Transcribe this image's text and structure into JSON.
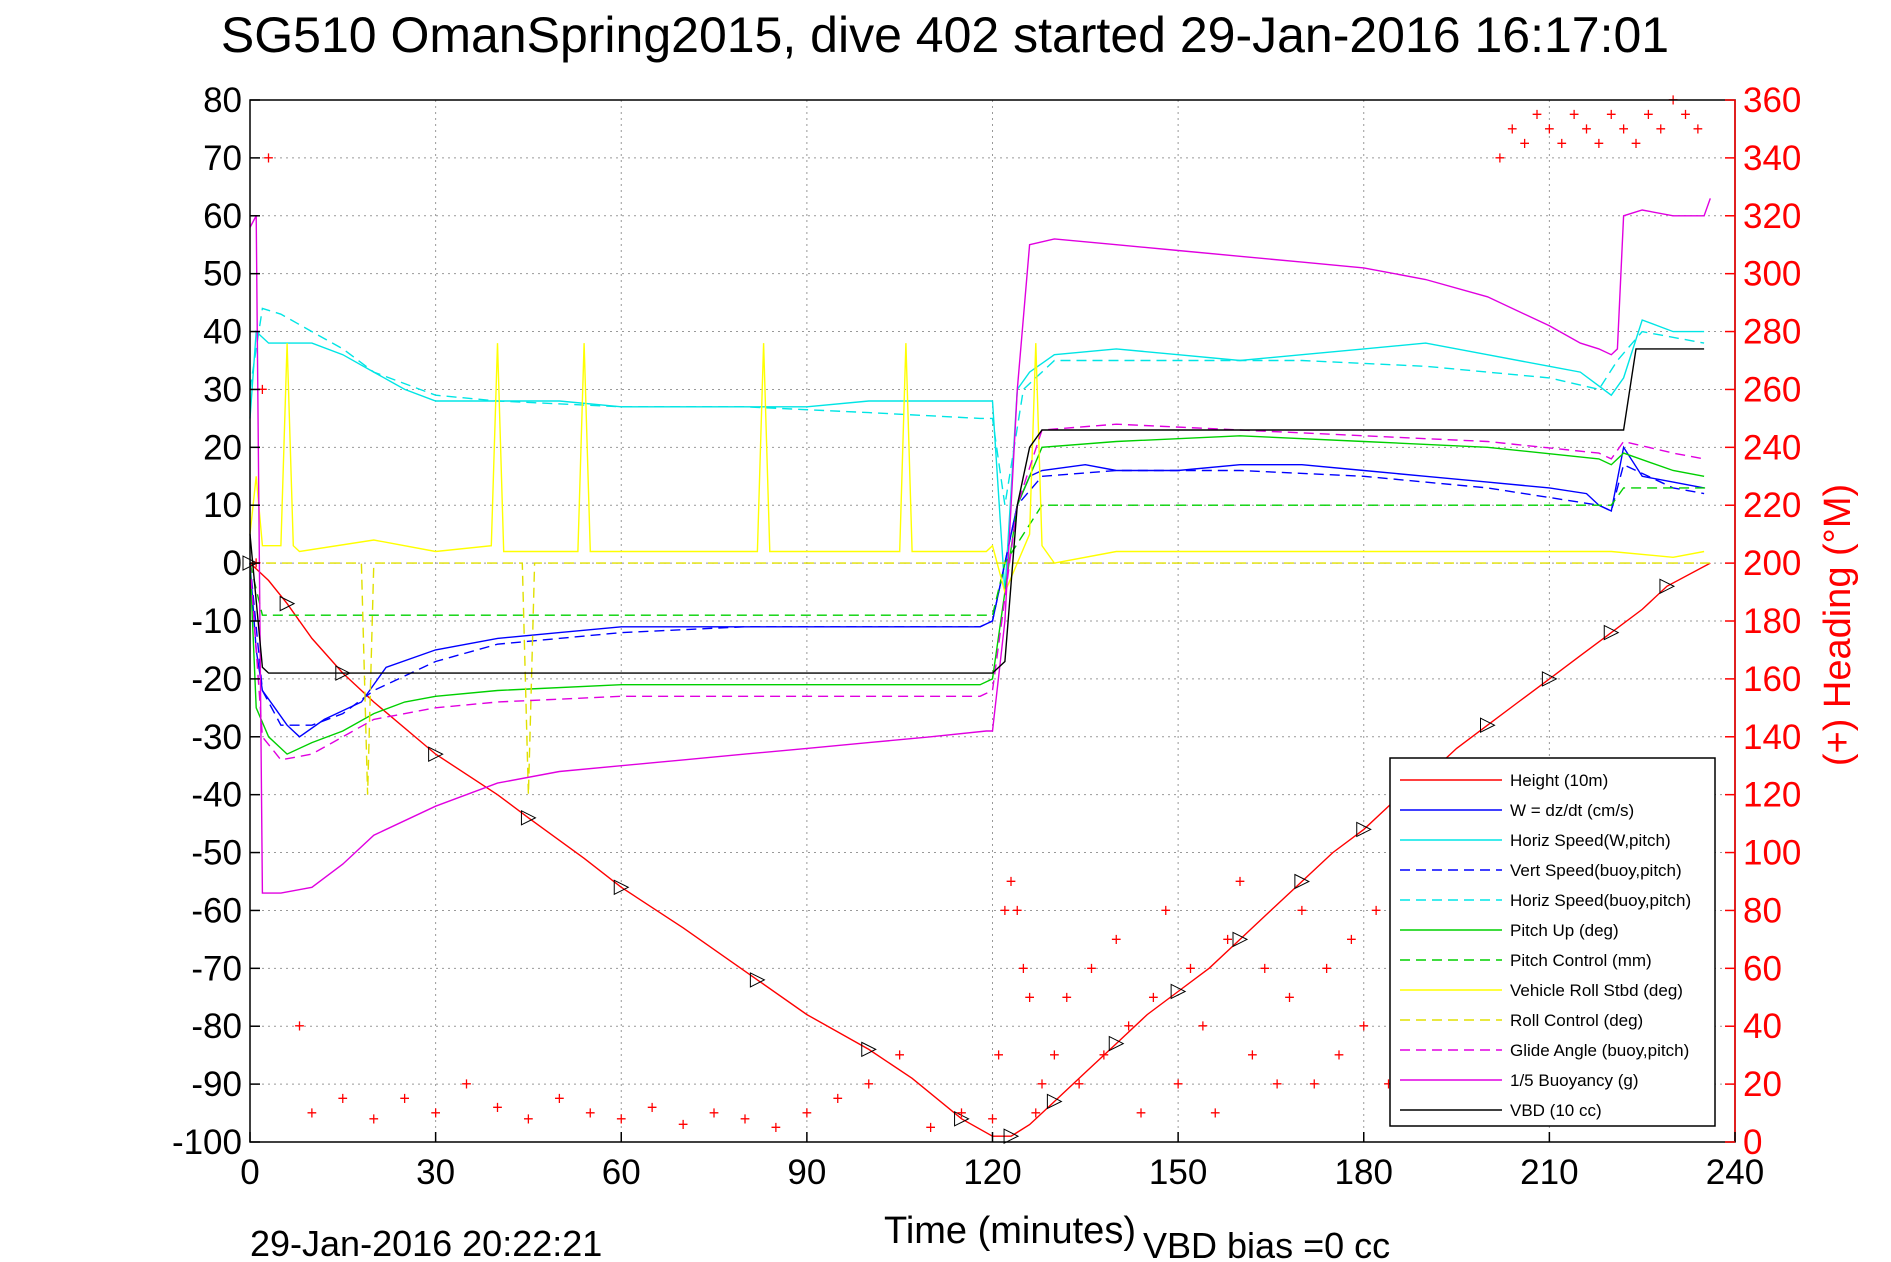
{
  "page": {
    "title": "SG510 OmanSpring2015, dive 402 started 29-Jan-2016 16:17:01",
    "footer_timestamp": "29-Jan-2016 20:22:21",
    "footer_note": "VBD bias =0 cc"
  },
  "colors": {
    "height": "#ff0000",
    "w": "#0000ff",
    "horiz_w": "#00e5e5",
    "vert_buoy": "#0000ff",
    "horiz_buoy": "#00e5e5",
    "pitch_up": "#00d000",
    "pitch_ctrl": "#00d000",
    "roll": "#ffff00",
    "roll_ctrl": "#e0e000",
    "glide": "#e000e0",
    "buoyancy": "#e000e0",
    "vbd": "#000000",
    "heading": "#ff0000"
  },
  "chart_data": {
    "type": "line",
    "title": "SG510 OmanSpring2015, dive 402 started 29-Jan-2016 16:17:01",
    "xlabel": "Time (minutes)",
    "ylabel": "",
    "y2label": "(+) Heading (°M)",
    "xlim": [
      0,
      240
    ],
    "ylim": [
      -100,
      80
    ],
    "y2lim": [
      0,
      360
    ],
    "x_ticks": [
      "0",
      "30",
      "60",
      "90",
      "120",
      "150",
      "180",
      "210",
      "240"
    ],
    "y_ticks": [
      "80",
      "70",
      "60",
      "50",
      "40",
      "30",
      "20",
      "10",
      "0",
      "-10",
      "-20",
      "-30",
      "-40",
      "-50",
      "-60",
      "-70",
      "-80",
      "-90",
      "-100"
    ],
    "y2_ticks": [
      "360",
      "340",
      "320",
      "300",
      "280",
      "260",
      "240",
      "220",
      "200",
      "180",
      "160",
      "140",
      "120",
      "100",
      "80",
      "60",
      "40",
      "20",
      "0"
    ],
    "grid": true,
    "legend_position": "bottom-right",
    "series": [
      {
        "key": "height",
        "name": "Height (10m)",
        "style": "solid",
        "x": [
          0,
          3,
          6,
          10,
          15,
          20,
          30,
          40,
          45,
          54,
          60,
          70,
          82,
          90,
          100,
          107,
          115,
          120,
          123,
          126,
          130,
          135,
          140,
          145,
          150,
          155,
          160,
          165,
          170,
          175,
          180,
          185,
          190,
          195,
          200,
          205,
          210,
          215,
          220,
          225,
          229,
          236
        ],
        "y": [
          0,
          -3,
          -7,
          -13,
          -19,
          -24,
          -33,
          -40,
          -44,
          -51,
          -56,
          -63,
          -72,
          -78,
          -84,
          -89,
          -96,
          -99,
          -99,
          -97,
          -93,
          -88,
          -83,
          -78,
          -74,
          -70,
          -65,
          -60,
          -55,
          -50,
          -46,
          -41,
          -37,
          -32,
          -28,
          -24,
          -20,
          -16,
          -12,
          -8,
          -4,
          0
        ]
      },
      {
        "key": "w",
        "name": "W = dz/dt (cm/s)",
        "style": "solid",
        "x": [
          0,
          1,
          2,
          4,
          6,
          8,
          12,
          18,
          22,
          30,
          40,
          50,
          60,
          70,
          80,
          90,
          100,
          110,
          118,
          120,
          122,
          124,
          126,
          128,
          135,
          140,
          150,
          160,
          170,
          180,
          190,
          200,
          210,
          216,
          218,
          220,
          222,
          225,
          230,
          235
        ],
        "y": [
          0,
          -15,
          -22,
          -25,
          -28,
          -30,
          -27,
          -24,
          -18,
          -15,
          -13,
          -12,
          -11,
          -11,
          -11,
          -11,
          -11,
          -11,
          -11,
          -10,
          0,
          10,
          15,
          16,
          17,
          16,
          16,
          17,
          17,
          16,
          15,
          14,
          13,
          12,
          10,
          9,
          20,
          15,
          14,
          13
        ]
      },
      {
        "key": "horiz_w",
        "name": "Horiz Speed(W,pitch)",
        "style": "solid",
        "x": [
          0,
          1,
          3,
          6,
          10,
          15,
          20,
          25,
          30,
          40,
          50,
          60,
          70,
          80,
          90,
          100,
          110,
          119,
          120,
          122,
          124,
          126,
          130,
          140,
          150,
          160,
          170,
          180,
          190,
          200,
          210,
          215,
          220,
          222,
          225,
          230,
          235
        ],
        "y": [
          25,
          40,
          38,
          38,
          38,
          36,
          33,
          30,
          28,
          28,
          28,
          27,
          27,
          27,
          27,
          28,
          28,
          28,
          28,
          -5,
          30,
          33,
          36,
          37,
          36,
          35,
          36,
          37,
          38,
          36,
          34,
          33,
          29,
          32,
          42,
          40,
          40
        ]
      },
      {
        "key": "vert_buoy",
        "name": "Vert Speed(buoy,pitch)",
        "style": "dashed",
        "x": [
          0,
          2,
          5,
          10,
          15,
          20,
          30,
          40,
          60,
          80,
          100,
          118,
          120,
          124,
          128,
          140,
          160,
          180,
          200,
          218,
          220,
          222,
          230,
          235
        ],
        "y": [
          0,
          -22,
          -28,
          -28,
          -26,
          -22,
          -17,
          -14,
          -12,
          -11,
          -11,
          -11,
          -10,
          10,
          15,
          16,
          16,
          15,
          13,
          10,
          9,
          17,
          13,
          12
        ]
      },
      {
        "key": "horiz_buoy",
        "name": "Horiz Speed(buoy,pitch)",
        "style": "dashed",
        "x": [
          0,
          2,
          5,
          10,
          15,
          20,
          30,
          40,
          60,
          80,
          100,
          118,
          120,
          122,
          125,
          130,
          150,
          170,
          190,
          210,
          218,
          221,
          225,
          235
        ],
        "y": [
          30,
          44,
          43,
          40,
          37,
          33,
          29,
          28,
          27,
          27,
          26,
          25,
          25,
          10,
          30,
          35,
          35,
          35,
          34,
          32,
          30,
          35,
          40,
          38
        ]
      },
      {
        "key": "pitch_up",
        "name": "Pitch Up (deg)",
        "style": "solid",
        "x": [
          0,
          1,
          3,
          6,
          10,
          15,
          20,
          25,
          30,
          40,
          60,
          80,
          100,
          118,
          120,
          124,
          128,
          140,
          160,
          180,
          200,
          218,
          220,
          222,
          230,
          235
        ],
        "y": [
          0,
          -25,
          -30,
          -33,
          -31,
          -29,
          -26,
          -24,
          -23,
          -22,
          -21,
          -21,
          -21,
          -21,
          -20,
          10,
          20,
          21,
          22,
          21,
          20,
          18,
          17,
          19,
          16,
          15
        ]
      },
      {
        "key": "pitch_ctrl",
        "name": "Pitch Control (mm)",
        "style": "dashed",
        "x": [
          0,
          2,
          50,
          100,
          120,
          122,
          128,
          220,
          222,
          236
        ],
        "y": [
          0,
          -9,
          -9,
          -9,
          -9,
          0,
          10,
          10,
          13,
          13
        ]
      },
      {
        "key": "roll",
        "name": "Vehicle Roll Stbd (deg)",
        "style": "solid",
        "x": [
          0,
          1,
          2,
          5,
          6,
          7,
          8,
          20,
          30,
          39,
          40,
          41,
          45,
          50,
          53,
          54,
          55,
          60,
          70,
          82,
          83,
          84,
          90,
          105,
          106,
          107,
          110,
          119,
          120,
          122,
          124,
          126,
          127,
          128,
          130,
          140,
          150,
          160,
          170,
          180,
          190,
          200,
          210,
          220,
          230,
          235
        ],
        "y": [
          5,
          15,
          3,
          3,
          38,
          3,
          2,
          4,
          2,
          3,
          38,
          2,
          2,
          2,
          2,
          38,
          2,
          2,
          2,
          2,
          38,
          2,
          2,
          2,
          38,
          2,
          2,
          2,
          3,
          -5,
          0,
          5,
          38,
          3,
          0,
          2,
          2,
          2,
          2,
          2,
          2,
          2,
          2,
          2,
          1,
          2
        ]
      },
      {
        "key": "roll_ctrl",
        "name": "Roll Control (deg)",
        "style": "dashed",
        "x": [
          0,
          18,
          19,
          20,
          44,
          45,
          46,
          120,
          236
        ],
        "y": [
          0,
          0,
          -40,
          0,
          0,
          -40,
          0,
          0,
          0
        ]
      },
      {
        "key": "glide",
        "name": "Glide Angle (buoy,pitch)",
        "style": "dashed",
        "x": [
          0,
          2,
          5,
          10,
          15,
          20,
          30,
          40,
          60,
          80,
          100,
          118,
          120,
          124,
          128,
          140,
          160,
          180,
          200,
          218,
          220,
          222,
          230,
          235
        ],
        "y": [
          0,
          -30,
          -34,
          -33,
          -30,
          -27,
          -25,
          -24,
          -23,
          -23,
          -23,
          -23,
          -22,
          10,
          23,
          24,
          23,
          22,
          21,
          19,
          18,
          21,
          19,
          18
        ]
      },
      {
        "key": "buoyancy",
        "name": "1/5 Buoyancy (g)",
        "style": "solid",
        "x": [
          0,
          1,
          2,
          5,
          10,
          15,
          20,
          30,
          40,
          50,
          60,
          70,
          80,
          90,
          100,
          110,
          119,
          120,
          122,
          124,
          126,
          130,
          140,
          150,
          160,
          170,
          180,
          190,
          200,
          210,
          215,
          218,
          220,
          221,
          222,
          225,
          230,
          235,
          236
        ],
        "y": [
          58,
          60,
          -57,
          -57,
          -56,
          -52,
          -47,
          -42,
          -38,
          -36,
          -35,
          -34,
          -33,
          -32,
          -31,
          -30,
          -29,
          -29,
          -10,
          30,
          55,
          56,
          55,
          54,
          53,
          52,
          51,
          49,
          46,
          41,
          38,
          37,
          36,
          37,
          60,
          61,
          60,
          60,
          63
        ]
      },
      {
        "key": "vbd",
        "name": "VBD (10 cc)",
        "style": "solid",
        "x": [
          0,
          2,
          3,
          120,
          122,
          124,
          126,
          128,
          220,
          222,
          224,
          235
        ],
        "y": [
          5,
          -18,
          -19,
          -19,
          -17,
          10,
          20,
          23,
          23,
          23,
          37,
          37
        ]
      }
    ],
    "heading_series": {
      "name": "(+) Heading",
      "axis": "right",
      "marker": "+",
      "x": [
        1,
        2,
        3,
        8,
        10,
        15,
        20,
        25,
        30,
        35,
        40,
        45,
        50,
        55,
        60,
        65,
        70,
        75,
        80,
        85,
        90,
        95,
        100,
        105,
        110,
        115,
        120,
        121,
        122,
        123,
        124,
        125,
        126,
        127,
        128,
        130,
        132,
        134,
        136,
        138,
        140,
        142,
        144,
        146,
        148,
        150,
        152,
        154,
        156,
        158,
        160,
        162,
        164,
        166,
        168,
        170,
        172,
        174,
        176,
        178,
        180,
        182,
        184,
        186,
        188,
        190,
        192,
        194,
        196,
        198,
        200,
        202,
        204,
        206,
        208,
        210,
        212,
        214,
        216,
        218,
        220,
        222,
        224,
        226,
        228,
        230,
        232,
        234
      ],
      "y": [
        200,
        260,
        340,
        40,
        10,
        15,
        8,
        15,
        10,
        20,
        12,
        8,
        15,
        10,
        8,
        12,
        6,
        10,
        8,
        5,
        10,
        15,
        20,
        30,
        5,
        10,
        8,
        30,
        80,
        90,
        80,
        60,
        50,
        10,
        20,
        30,
        50,
        20,
        60,
        30,
        70,
        40,
        10,
        50,
        80,
        20,
        60,
        40,
        10,
        70,
        90,
        30,
        60,
        20,
        50,
        80,
        20,
        60,
        30,
        70,
        40,
        80,
        20,
        60,
        35,
        70,
        40,
        80,
        30,
        60,
        50,
        340,
        350,
        345,
        355,
        350,
        345,
        355,
        350,
        345,
        355,
        350,
        345,
        355,
        350,
        360,
        355,
        350
      ]
    },
    "legend": [
      "Height (10m)",
      "W = dz/dt (cm/s)",
      "Horiz Speed(W,pitch)",
      "Vert Speed(buoy,pitch)",
      "Horiz Speed(buoy,pitch)",
      "Pitch Up (deg)",
      "Pitch Control (mm)",
      "Vehicle Roll Stbd (deg)",
      "Roll Control (deg)",
      "Glide Angle (buoy,pitch)",
      "1/5 Buoyancy (g)",
      "VBD (10 cc)"
    ]
  }
}
